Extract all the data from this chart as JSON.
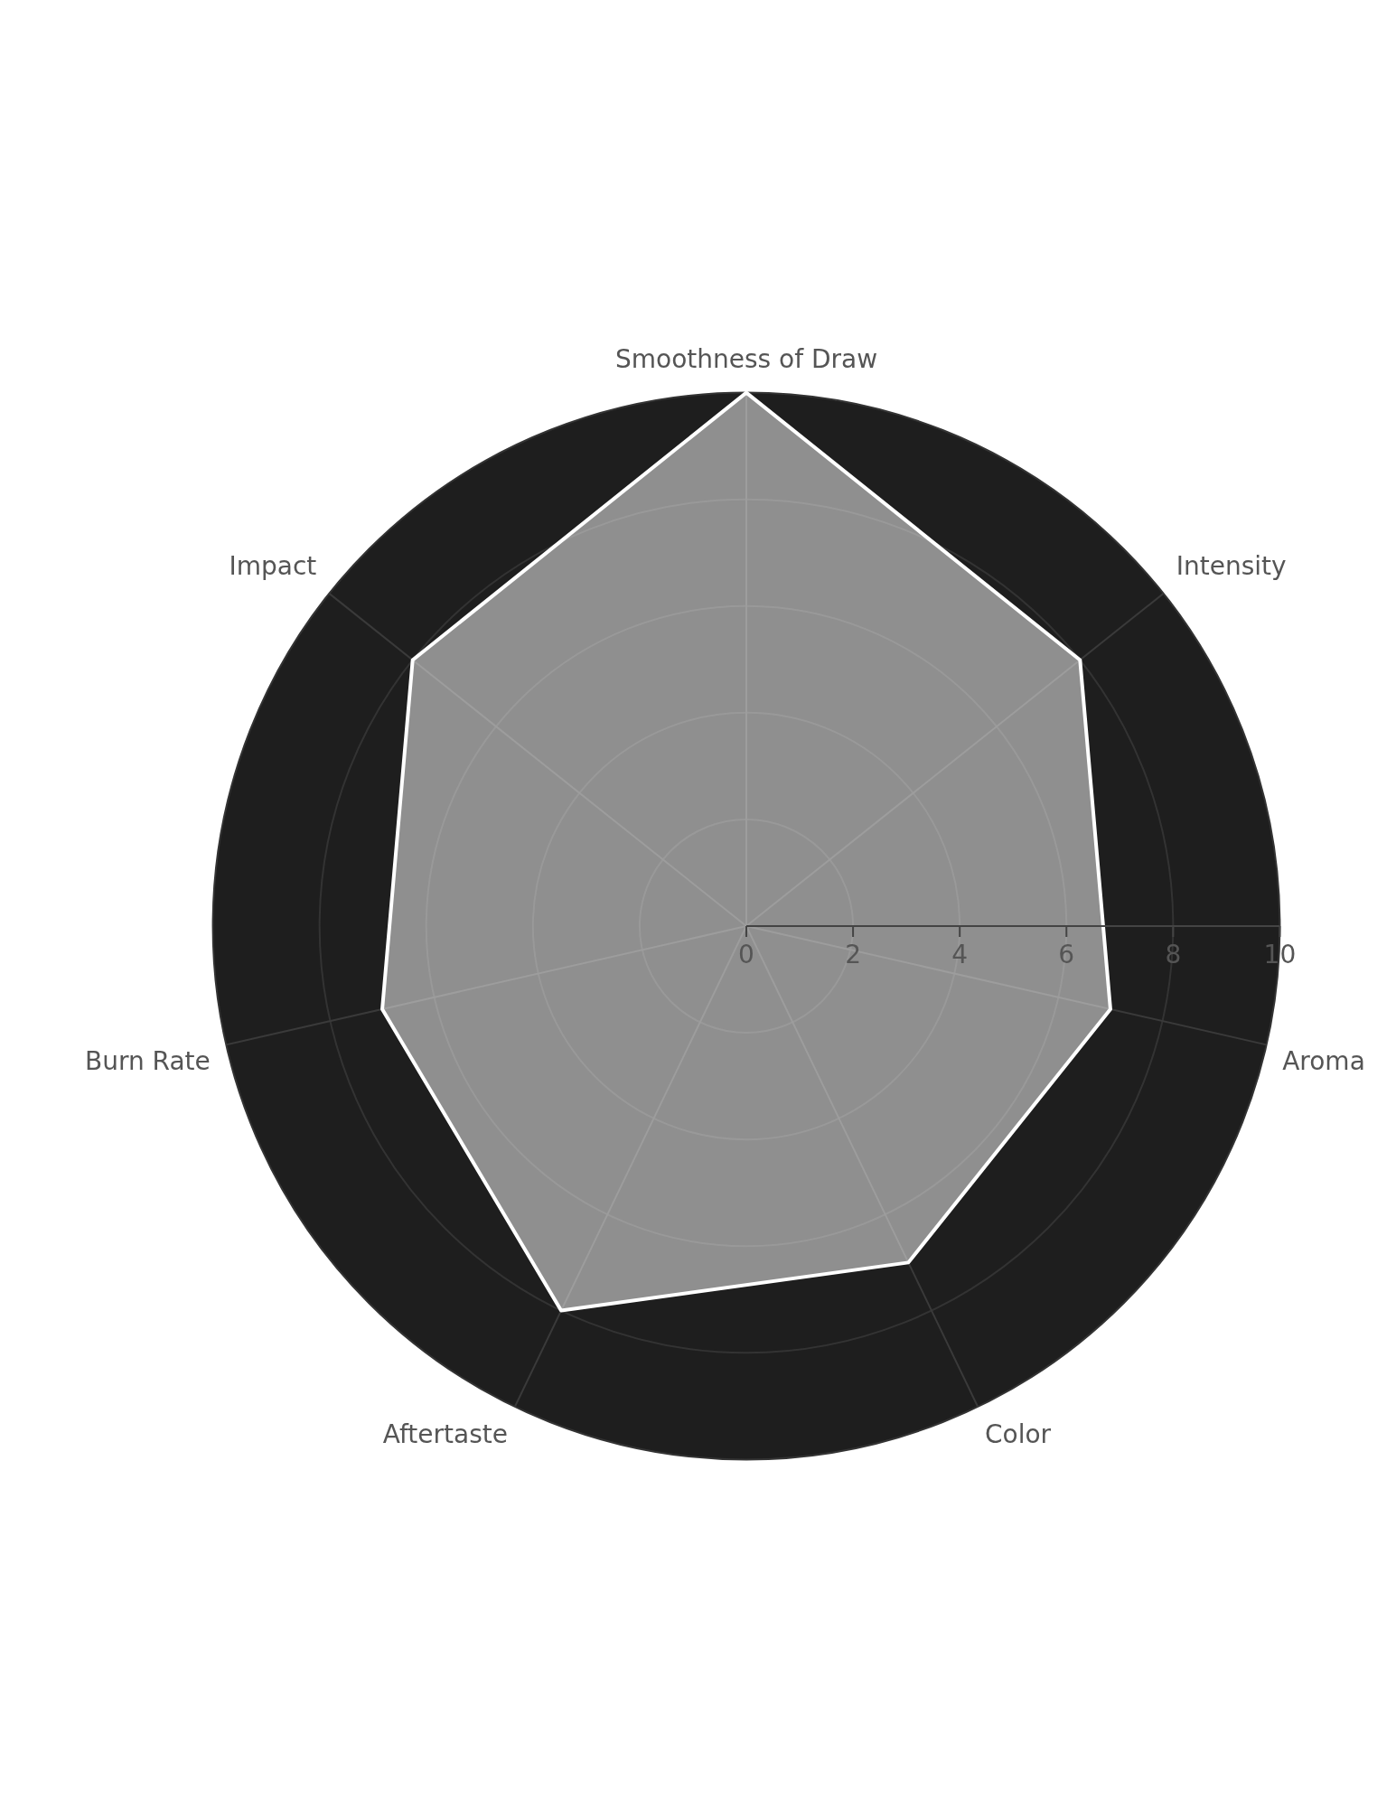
{
  "chart_data": {
    "type": "radar",
    "categories": [
      "Smoothness of Draw",
      "Intensity",
      "Aroma",
      "Color",
      "Aftertaste",
      "Burn Rate",
      "Impact"
    ],
    "series": [
      {
        "color": "#ffffff",
        "values": [
          10,
          8,
          7,
          7,
          8,
          7,
          8
        ]
      }
    ],
    "ylim": [
      0,
      10
    ],
    "yticks": [
      0,
      2,
      4,
      6,
      8,
      10
    ],
    "grid": true,
    "legend": false,
    "marker": "none"
  }
}
